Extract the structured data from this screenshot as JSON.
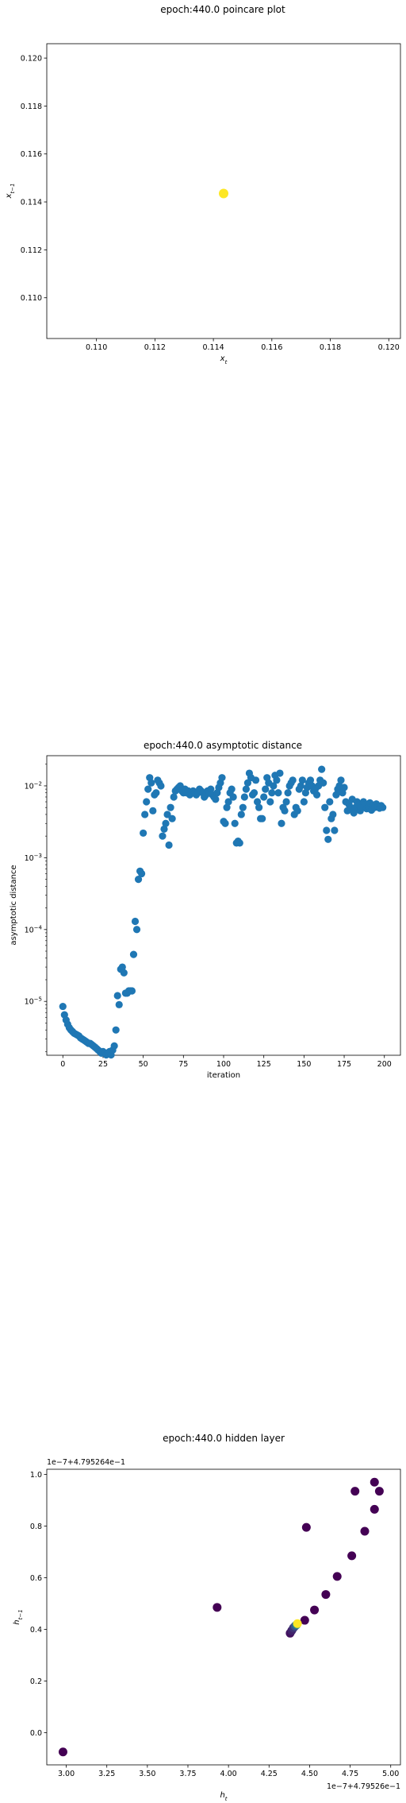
{
  "chart_data": [
    {
      "type": "scatter",
      "title": "epoch:440.0 poincare plot",
      "xlabel": "x_t",
      "ylabel": "x_t-1",
      "xlim": [
        0.1083,
        0.1204
      ],
      "ylim": [
        0.1083,
        0.1206
      ],
      "xticks": [
        0.11,
        0.112,
        0.114,
        0.116,
        0.118,
        0.12
      ],
      "yticks": [
        0.11,
        0.112,
        0.114,
        0.116,
        0.118,
        0.12
      ],
      "xtick_labels": [
        "0.110",
        "0.112",
        "0.114",
        "0.116",
        "0.118",
        "0.120"
      ],
      "ytick_labels": [
        "0.110",
        "0.112",
        "0.114",
        "0.116",
        "0.118",
        "0.120"
      ],
      "grid": false,
      "point_color": "#fde725",
      "points": [
        {
          "x": 0.11435,
          "y": 0.11435
        }
      ]
    },
    {
      "type": "scatter",
      "title": "epoch:440.0 asymptotic distance",
      "xlabel": "iteration",
      "ylabel": "asymptotic distance",
      "yscale": "log",
      "xlim": [
        -10,
        210
      ],
      "ylim_log10": [
        -5.75,
        -1.58
      ],
      "xticks": [
        0,
        25,
        50,
        75,
        100,
        125,
        150,
        175,
        200
      ],
      "xtick_labels": [
        "0",
        "25",
        "50",
        "75",
        "100",
        "125",
        "150",
        "175",
        "200"
      ],
      "ytick_exponents": [
        -5,
        -4,
        -3,
        -2
      ],
      "grid": false,
      "point_color": "#1f77b4",
      "x": [
        0,
        1,
        2,
        3,
        4,
        5,
        6,
        7,
        8,
        9,
        10,
        11,
        12,
        13,
        14,
        15,
        16,
        17,
        18,
        19,
        20,
        21,
        22,
        23,
        24,
        25,
        26,
        27,
        28,
        29,
        30,
        31,
        32,
        33,
        34,
        35,
        36,
        37,
        38,
        39,
        40,
        41,
        42,
        43,
        44,
        45,
        46,
        47,
        48,
        49,
        50,
        51,
        52,
        53,
        54,
        55,
        56,
        57,
        58,
        59,
        60,
        61,
        62,
        63,
        64,
        65,
        66,
        67,
        68,
        69,
        70,
        71,
        72,
        73,
        74,
        75,
        76,
        77,
        78,
        79,
        80,
        81,
        82,
        83,
        84,
        85,
        86,
        87,
        88,
        89,
        90,
        91,
        92,
        93,
        94,
        95,
        96,
        97,
        98,
        99,
        100,
        101,
        102,
        103,
        104,
        105,
        106,
        107,
        108,
        109,
        110,
        111,
        112,
        113,
        114,
        115,
        116,
        117,
        118,
        119,
        120,
        121,
        122,
        123,
        124,
        125,
        126,
        127,
        128,
        129,
        130,
        131,
        132,
        133,
        134,
        135,
        136,
        137,
        138,
        139,
        140,
        141,
        142,
        143,
        144,
        145,
        146,
        147,
        148,
        149,
        150,
        151,
        152,
        153,
        154,
        155,
        156,
        157,
        158,
        159,
        160,
        161,
        162,
        163,
        164,
        165,
        166,
        167,
        168,
        169,
        170,
        171,
        172,
        173,
        174,
        175,
        176,
        177,
        178,
        179,
        180,
        181,
        182,
        183,
        184,
        185,
        186,
        187,
        188,
        189,
        190,
        191,
        192,
        193,
        194,
        195,
        196,
        197,
        198,
        199
      ],
      "y": [
        8.5e-06,
        6.5e-06,
        5.5e-06,
        4.8e-06,
        4.3e-06,
        4e-06,
        3.8e-06,
        3.6e-06,
        3.5e-06,
        3.4e-06,
        3.3e-06,
        3.1e-06,
        3e-06,
        2.9e-06,
        2.8e-06,
        2.7e-06,
        2.6e-06,
        2.6e-06,
        2.5e-06,
        2.4e-06,
        2.3e-06,
        2.2e-06,
        2.1e-06,
        2e-06,
        1.9e-06,
        2e-06,
        1.9e-06,
        1.8e-06,
        1.9e-06,
        2e-06,
        1.8e-06,
        2.1e-06,
        2.4e-06,
        4e-06,
        1.2e-05,
        9e-06,
        2.8e-05,
        3e-05,
        2.5e-05,
        1.3e-05,
        1.3e-05,
        1.4e-05,
        1.4e-05,
        1.4e-05,
        4.5e-05,
        0.00013,
        0.0001,
        0.0005,
        0.00065,
        0.0006,
        0.0022,
        0.004,
        0.006,
        0.009,
        0.013,
        0.011,
        0.0045,
        0.0075,
        0.008,
        0.012,
        0.011,
        0.01,
        0.002,
        0.0025,
        0.003,
        0.004,
        0.0015,
        0.005,
        0.0035,
        0.007,
        0.0085,
        0.009,
        0.0095,
        0.01,
        0.0085,
        0.008,
        0.009,
        0.008,
        0.0085,
        0.0075,
        0.008,
        0.0085,
        0.008,
        0.0075,
        0.008,
        0.009,
        0.0085,
        0.008,
        0.007,
        0.0075,
        0.0085,
        0.008,
        0.009,
        0.0075,
        0.007,
        0.0065,
        0.008,
        0.0095,
        0.011,
        0.013,
        0.0032,
        0.003,
        0.005,
        0.006,
        0.008,
        0.009,
        0.007,
        0.003,
        0.0016,
        0.0017,
        0.0016,
        0.004,
        0.005,
        0.007,
        0.009,
        0.011,
        0.015,
        0.013,
        0.0075,
        0.008,
        0.012,
        0.006,
        0.005,
        0.0035,
        0.0035,
        0.007,
        0.009,
        0.013,
        0.011,
        0.006,
        0.008,
        0.01,
        0.014,
        0.012,
        0.008,
        0.015,
        0.003,
        0.005,
        0.0045,
        0.006,
        0.008,
        0.01,
        0.011,
        0.012,
        0.004,
        0.005,
        0.0045,
        0.009,
        0.01,
        0.012,
        0.006,
        0.008,
        0.0095,
        0.011,
        0.012,
        0.01,
        0.0085,
        0.009,
        0.0075,
        0.01,
        0.012,
        0.017,
        0.011,
        0.005,
        0.0024,
        0.0018,
        0.006,
        0.0035,
        0.004,
        0.0024,
        0.0075,
        0.009,
        0.01,
        0.012,
        0.008,
        0.0095,
        0.006,
        0.0045,
        0.0055,
        0.005,
        0.0065,
        0.0042,
        0.005,
        0.006,
        0.0055,
        0.0045,
        0.005,
        0.006,
        0.0055,
        0.0048,
        0.0052,
        0.0058,
        0.0046,
        0.0054,
        0.005,
        0.0056,
        0.0051,
        0.0049,
        0.0053,
        0.005
      ]
    },
    {
      "type": "scatter",
      "title": "epoch:440.0 hidden layer",
      "xlabel": "h_t",
      "ylabel": "h_t-1",
      "xlim": [
        2.88,
        5.06
      ],
      "ylim": [
        -0.125,
        1.02
      ],
      "xticks": [
        3.0,
        3.25,
        3.5,
        3.75,
        4.0,
        4.25,
        4.5,
        4.75,
        5.0
      ],
      "yticks": [
        0.0,
        0.2,
        0.4,
        0.6,
        0.8,
        1.0
      ],
      "xtick_labels": [
        "3.00",
        "3.25",
        "3.50",
        "3.75",
        "4.00",
        "4.25",
        "4.50",
        "4.75",
        "5.00"
      ],
      "ytick_labels": [
        "0.0",
        "0.2",
        "0.4",
        "0.6",
        "0.8",
        "1.0"
      ],
      "x_offset_label": "1e−7+4.79526e−1",
      "y_offset_label": "1e−7+4.795264e−1",
      "grid": false,
      "colormap": [
        "#440154",
        "#3b528b",
        "#21918c",
        "#5ec962",
        "#fde725"
      ],
      "points": [
        {
          "x": 2.98,
          "y": -0.075,
          "c": 0.0
        },
        {
          "x": 3.93,
          "y": 0.485,
          "c": 0.0
        },
        {
          "x": 4.48,
          "y": 0.795,
          "c": 0.0
        },
        {
          "x": 4.47,
          "y": 0.435,
          "c": 0.0
        },
        {
          "x": 4.53,
          "y": 0.475,
          "c": 0.0
        },
        {
          "x": 4.6,
          "y": 0.535,
          "c": 0.0
        },
        {
          "x": 4.67,
          "y": 0.605,
          "c": 0.0
        },
        {
          "x": 4.76,
          "y": 0.685,
          "c": 0.0
        },
        {
          "x": 4.84,
          "y": 0.78,
          "c": 0.0
        },
        {
          "x": 4.9,
          "y": 0.865,
          "c": 0.0
        },
        {
          "x": 4.78,
          "y": 0.935,
          "c": 0.0
        },
        {
          "x": 4.9,
          "y": 0.97,
          "c": 0.0
        },
        {
          "x": 4.93,
          "y": 0.935,
          "c": 0.0
        },
        {
          "x": 4.38,
          "y": 0.385,
          "c": 0.05
        },
        {
          "x": 4.39,
          "y": 0.395,
          "c": 0.1
        },
        {
          "x": 4.4,
          "y": 0.405,
          "c": 0.15
        },
        {
          "x": 4.41,
          "y": 0.412,
          "c": 0.25
        },
        {
          "x": 4.42,
          "y": 0.418,
          "c": 0.45
        },
        {
          "x": 4.425,
          "y": 0.422,
          "c": 1.0
        }
      ]
    }
  ]
}
